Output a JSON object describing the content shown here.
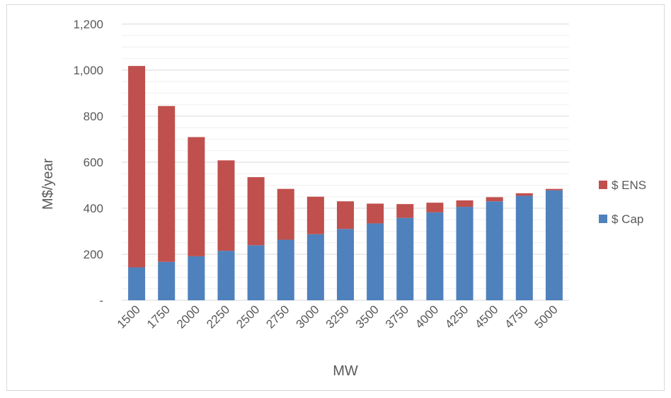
{
  "chart_data": {
    "type": "bar",
    "stacked": true,
    "categories": [
      "1500",
      "1750",
      "2000",
      "2250",
      "2500",
      "2750",
      "3000",
      "3250",
      "3500",
      "3750",
      "4000",
      "4250",
      "4500",
      "4750",
      "5000"
    ],
    "series": [
      {
        "name": "$ Cap",
        "color": "#4f81bd",
        "values": [
          143,
          167,
          191,
          215,
          239,
          263,
          287,
          310,
          334,
          358,
          382,
          406,
          430,
          454,
          478
        ]
      },
      {
        "name": "$ ENS",
        "color": "#c0504d",
        "values": [
          875,
          677,
          518,
          393,
          296,
          221,
          163,
          120,
          86,
          60,
          42,
          28,
          18,
          11,
          6
        ]
      }
    ],
    "y_ticks": [
      "-",
      "200",
      "400",
      "600",
      "800",
      "1,000",
      "1,200"
    ],
    "ylim": [
      0,
      1200
    ],
    "xlabel": "MW",
    "ylabel": "M$/year",
    "legend_position": "right",
    "grid": true
  }
}
